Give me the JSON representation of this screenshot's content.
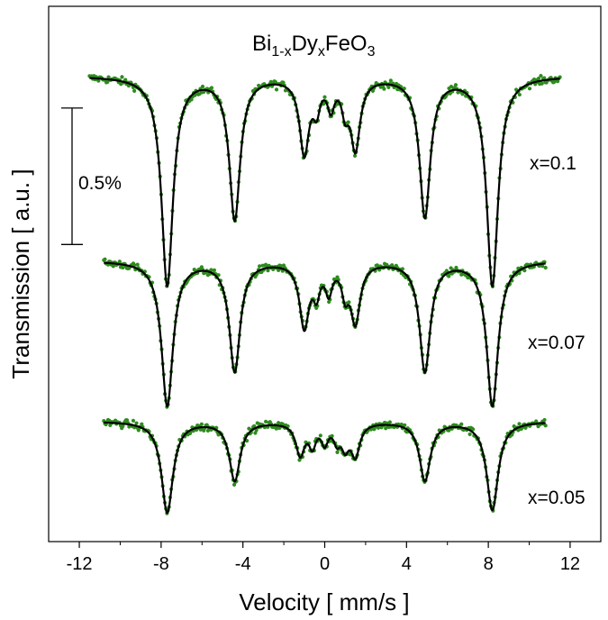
{
  "chart_data": {
    "type": "scatter",
    "title": "",
    "compound": {
      "base": "Bi",
      "sub1": "1-x",
      "mid": "Dy",
      "sub2": "x",
      "end": "FeO",
      "sub3": "3"
    },
    "xlabel": "Velocity [ mm/s ]",
    "ylabel": "Transmission [ a.u. ]",
    "xlim": [
      -13.5,
      13.5
    ],
    "xticks": [
      -12,
      -8,
      -4,
      0,
      4,
      8,
      12
    ],
    "xtick_labels": [
      "-12",
      "-8",
      "-4",
      "0",
      "4",
      "8",
      "12"
    ],
    "ylim": [
      0,
      100
    ],
    "scale_bar": {
      "label": "0.5%",
      "y_top": 81,
      "y_bottom": 55.5
    },
    "series": [
      {
        "name": "x=0.1",
        "x_range": [
          -11.5,
          11.5
        ],
        "baseline": 87,
        "lines": [
          {
            "v": -7.7,
            "depth": 39,
            "w": 0.34
          },
          {
            "v": -4.4,
            "depth": 26.5,
            "w": 0.32
          },
          {
            "v": -1.0,
            "depth": 14,
            "w": 0.28
          },
          {
            "v": -0.4,
            "depth": 5,
            "w": 0.2
          },
          {
            "v": 0.3,
            "depth": 5,
            "w": 0.2
          },
          {
            "v": 1.0,
            "depth": 5,
            "w": 0.2
          },
          {
            "v": 1.5,
            "depth": 13,
            "w": 0.28
          },
          {
            "v": 4.9,
            "depth": 26,
            "w": 0.32
          },
          {
            "v": 8.2,
            "depth": 39,
            "w": 0.34
          }
        ]
      },
      {
        "name": "x=0.07",
        "x_range": [
          -10.8,
          10.8
        ],
        "baseline": 52.5,
        "lines": [
          {
            "v": -7.7,
            "depth": 27,
            "w": 0.34
          },
          {
            "v": -4.4,
            "depth": 20.5,
            "w": 0.32
          },
          {
            "v": -1.0,
            "depth": 12,
            "w": 0.28
          },
          {
            "v": -0.4,
            "depth": 5,
            "w": 0.2
          },
          {
            "v": 0.2,
            "depth": 5,
            "w": 0.2
          },
          {
            "v": 1.0,
            "depth": 5,
            "w": 0.2
          },
          {
            "v": 1.5,
            "depth": 11,
            "w": 0.28
          },
          {
            "v": 4.9,
            "depth": 20.5,
            "w": 0.32
          },
          {
            "v": 8.2,
            "depth": 27,
            "w": 0.34
          }
        ]
      },
      {
        "name": "x=0.05",
        "x_range": [
          -10.8,
          10.8
        ],
        "baseline": 22.5,
        "lines": [
          {
            "v": -7.7,
            "depth": 17,
            "w": 0.34
          },
          {
            "v": -4.4,
            "depth": 11,
            "w": 0.32
          },
          {
            "v": -1.2,
            "depth": 6,
            "w": 0.26
          },
          {
            "v": -0.6,
            "depth": 4,
            "w": 0.2
          },
          {
            "v": 0.0,
            "depth": 3.5,
            "w": 0.2
          },
          {
            "v": 0.6,
            "depth": 3,
            "w": 0.2
          },
          {
            "v": 1.0,
            "depth": 4,
            "w": 0.22
          },
          {
            "v": 1.5,
            "depth": 6,
            "w": 0.26
          },
          {
            "v": 4.9,
            "depth": 11,
            "w": 0.32
          },
          {
            "v": 8.2,
            "depth": 16.5,
            "w": 0.34
          }
        ]
      }
    ],
    "colors": {
      "points": "#2e8b1e",
      "fit": "#000000",
      "axes": "#000000"
    },
    "grid": false,
    "legend": "none"
  }
}
